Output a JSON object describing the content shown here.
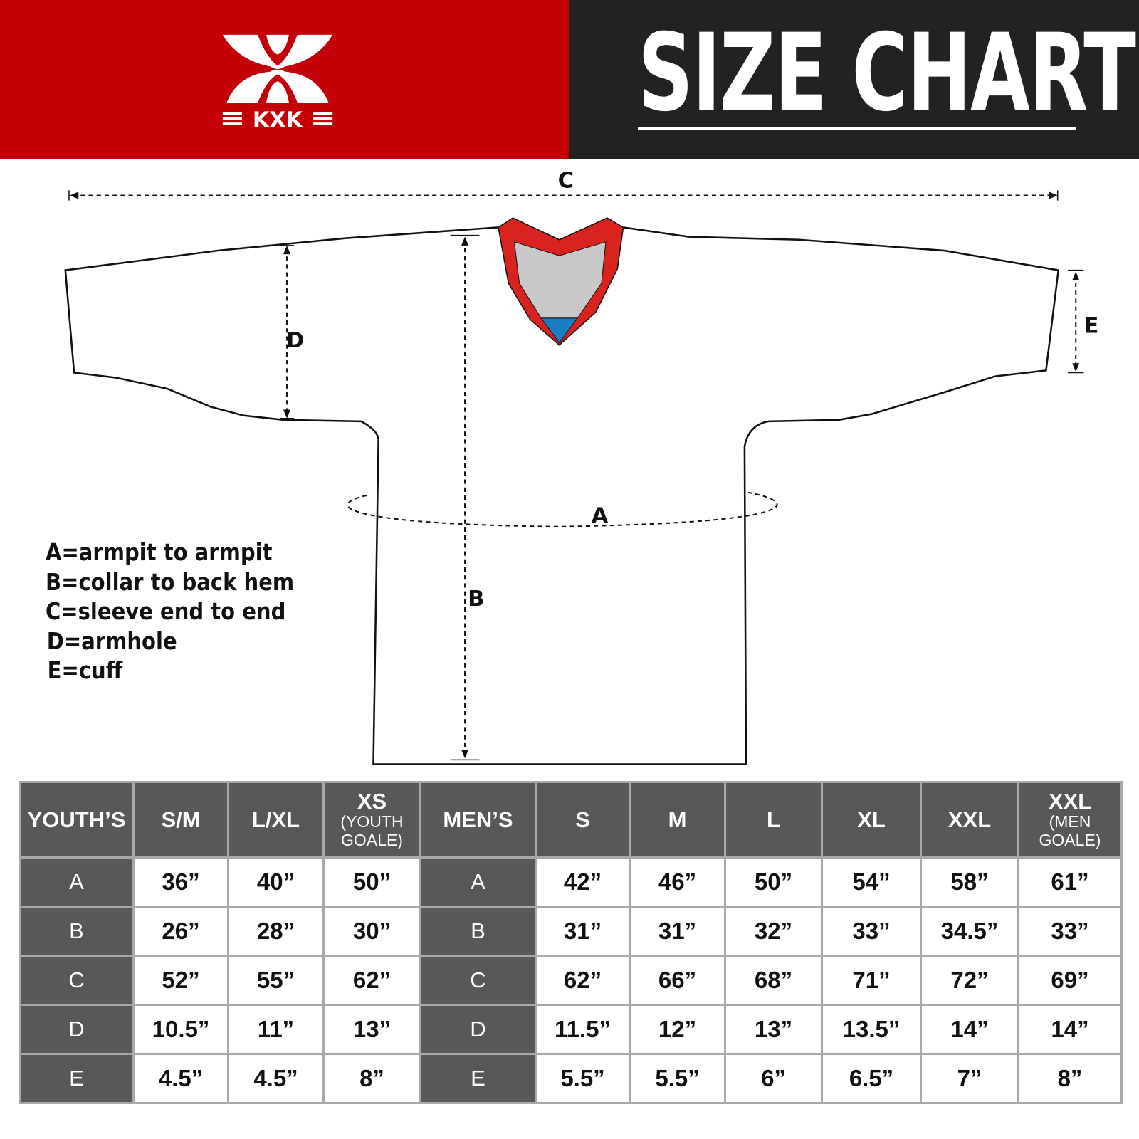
{
  "header": {
    "brand": "KXK",
    "title": "SIZE CHART",
    "colors": {
      "brand_red": "#c40008",
      "dark": "#222223",
      "table_header": "#58585a"
    }
  },
  "diagram": {
    "labels": {
      "a": "A",
      "b": "B",
      "c": "C",
      "d": "D",
      "e": "E"
    },
    "collar_colors": {
      "trim": "#d8231f",
      "inner": "#c8c8c8",
      "tag": "#1b7fc4"
    }
  },
  "legend": [
    "A=armpit to armpit",
    "B=collar to back hem",
    "C=sleeve end to end",
    "D=armhole",
    "E=cuff"
  ],
  "table": {
    "youth_header": "YOUTH’S",
    "youth_sizes": [
      {
        "main": "S/M",
        "sub": ""
      },
      {
        "main": "L/XL",
        "sub": ""
      },
      {
        "main": "XS",
        "sub": "(YOUTH GOALE)"
      }
    ],
    "men_header": "MEN’S",
    "men_sizes": [
      {
        "main": "S",
        "sub": ""
      },
      {
        "main": "M",
        "sub": ""
      },
      {
        "main": "L",
        "sub": ""
      },
      {
        "main": "XL",
        "sub": ""
      },
      {
        "main": "XXL",
        "sub": ""
      },
      {
        "main": "XXL",
        "sub": "(MEN GOALE)"
      }
    ],
    "rows": [
      {
        "label": "A",
        "youth": [
          "36”",
          "40”",
          "50”"
        ],
        "men": [
          "42”",
          "46”",
          "50”",
          "54”",
          "58”",
          "61”"
        ]
      },
      {
        "label": "B",
        "youth": [
          "26”",
          "28”",
          "30”"
        ],
        "men": [
          "31”",
          "31”",
          "32”",
          "33”",
          "34.5”",
          "33”"
        ]
      },
      {
        "label": "C",
        "youth": [
          "52”",
          "55”",
          "62”"
        ],
        "men": [
          "62”",
          "66”",
          "68”",
          "71”",
          "72”",
          "69”"
        ]
      },
      {
        "label": "D",
        "youth": [
          "10.5”",
          "11”",
          "13”"
        ],
        "men": [
          "11.5”",
          "12”",
          "13”",
          "13.5”",
          "14”",
          "14”"
        ]
      },
      {
        "label": "E",
        "youth": [
          "4.5”",
          "4.5”",
          "8”"
        ],
        "men": [
          "5.5”",
          "5.5”",
          "6”",
          "6.5”",
          "7”",
          "8”"
        ]
      }
    ]
  }
}
